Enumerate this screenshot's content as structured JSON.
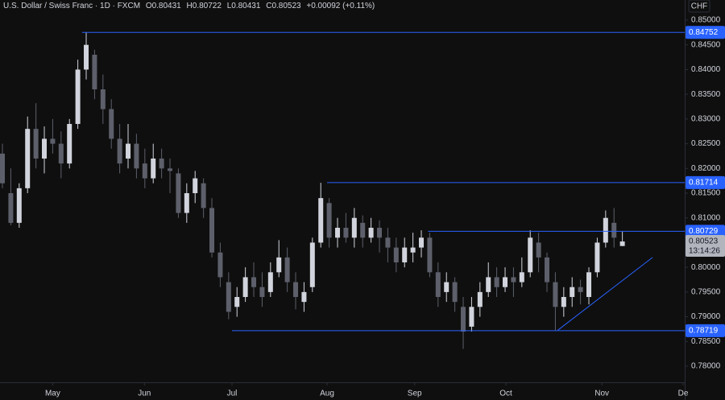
{
  "chart_data": {
    "type": "candlestick",
    "title": "U.S. Dollar / Swiss Franc · 1D · FXCM",
    "header_labels": {
      "open": "O",
      "high": "H",
      "low": "L",
      "close": "C"
    },
    "change": "+0.00092 (+0.11%)",
    "currency": "CHF",
    "countdown": "13:14:26",
    "up_color": "#d1d4dc",
    "down_color": "#5d606b",
    "level_color": "#2962ff",
    "candles": [
      [
        0.823,
        0.825,
        0.816,
        0.817
      ],
      [
        0.815,
        0.82,
        0.8085,
        0.809
      ],
      [
        0.809,
        0.817,
        0.808,
        0.816
      ],
      [
        0.816,
        0.8305,
        0.815,
        0.828
      ],
      [
        0.828,
        0.8332,
        0.82,
        0.822
      ],
      [
        0.822,
        0.8285,
        0.819,
        0.826
      ],
      [
        0.826,
        0.83,
        0.823,
        0.825
      ],
      [
        0.825,
        0.8275,
        0.818,
        0.821
      ],
      [
        0.821,
        0.83,
        0.82,
        0.829
      ],
      [
        0.829,
        0.842,
        0.828,
        0.84
      ],
      [
        0.84,
        0.8475,
        0.838,
        0.845
      ],
      [
        0.843,
        0.844,
        0.834,
        0.836
      ],
      [
        0.836,
        0.839,
        0.829,
        0.832
      ],
      [
        0.832,
        0.834,
        0.824,
        0.826
      ],
      [
        0.826,
        0.829,
        0.819,
        0.821
      ],
      [
        0.822,
        0.829,
        0.82,
        0.825
      ],
      [
        0.825,
        0.827,
        0.818,
        0.82
      ],
      [
        0.821,
        0.824,
        0.816,
        0.818
      ],
      [
        0.818,
        0.825,
        0.817,
        0.822
      ],
      [
        0.822,
        0.824,
        0.818,
        0.82
      ],
      [
        0.82,
        0.822,
        0.815,
        0.8195
      ],
      [
        0.819,
        0.82,
        0.81,
        0.811
      ],
      [
        0.811,
        0.817,
        0.809,
        0.815
      ],
      [
        0.815,
        0.8195,
        0.813,
        0.818
      ],
      [
        0.817,
        0.818,
        0.81,
        0.812
      ],
      [
        0.812,
        0.814,
        0.802,
        0.803
      ],
      [
        0.803,
        0.805,
        0.796,
        0.798
      ],
      [
        0.797,
        0.799,
        0.7895,
        0.791
      ],
      [
        0.792,
        0.796,
        0.79,
        0.794
      ],
      [
        0.794,
        0.8,
        0.793,
        0.798
      ],
      [
        0.798,
        0.801,
        0.794,
        0.796
      ],
      [
        0.796,
        0.799,
        0.792,
        0.794
      ],
      [
        0.795,
        0.801,
        0.794,
        0.799
      ],
      [
        0.799,
        0.8055,
        0.798,
        0.802
      ],
      [
        0.802,
        0.804,
        0.795,
        0.797
      ],
      [
        0.797,
        0.799,
        0.7915,
        0.794
      ],
      [
        0.793,
        0.797,
        0.791,
        0.795
      ],
      [
        0.796,
        0.806,
        0.795,
        0.805
      ],
      [
        0.805,
        0.8171,
        0.804,
        0.814
      ],
      [
        0.813,
        0.814,
        0.804,
        0.806
      ],
      [
        0.806,
        0.81,
        0.804,
        0.808
      ],
      [
        0.808,
        0.811,
        0.805,
        0.806
      ],
      [
        0.806,
        0.812,
        0.804,
        0.81
      ],
      [
        0.809,
        0.8105,
        0.804,
        0.806
      ],
      [
        0.806,
        0.81,
        0.805,
        0.808
      ],
      [
        0.808,
        0.8095,
        0.803,
        0.806
      ],
      [
        0.806,
        0.808,
        0.801,
        0.804
      ],
      [
        0.804,
        0.806,
        0.799,
        0.801
      ],
      [
        0.801,
        0.806,
        0.8,
        0.804
      ],
      [
        0.803,
        0.807,
        0.801,
        0.804
      ],
      [
        0.804,
        0.8075,
        0.802,
        0.806
      ],
      [
        0.806,
        0.807,
        0.798,
        0.799
      ],
      [
        0.799,
        0.801,
        0.792,
        0.794
      ],
      [
        0.795,
        0.799,
        0.793,
        0.797
      ],
      [
        0.797,
        0.798,
        0.791,
        0.793
      ],
      [
        0.792,
        0.794,
        0.7835,
        0.787
      ],
      [
        0.788,
        0.794,
        0.787,
        0.792
      ],
      [
        0.792,
        0.797,
        0.79,
        0.795
      ],
      [
        0.795,
        0.801,
        0.794,
        0.798
      ],
      [
        0.798,
        0.8,
        0.794,
        0.796
      ],
      [
        0.796,
        0.8,
        0.795,
        0.798
      ],
      [
        0.798,
        0.8,
        0.794,
        0.797
      ],
      [
        0.797,
        0.802,
        0.796,
        0.799
      ],
      [
        0.799,
        0.8075,
        0.798,
        0.806
      ],
      [
        0.805,
        0.807,
        0.799,
        0.802
      ],
      [
        0.802,
        0.803,
        0.795,
        0.797
      ],
      [
        0.797,
        0.799,
        0.7872,
        0.792
      ],
      [
        0.792,
        0.796,
        0.79,
        0.794
      ],
      [
        0.794,
        0.798,
        0.792,
        0.796
      ],
      [
        0.796,
        0.7975,
        0.7925,
        0.795
      ],
      [
        0.794,
        0.8,
        0.7925,
        0.799
      ],
      [
        0.799,
        0.806,
        0.798,
        0.805
      ],
      [
        0.805,
        0.8115,
        0.804,
        0.81
      ],
      [
        0.809,
        0.812,
        0.804,
        0.806
      ],
      [
        0.80431,
        0.80722,
        0.80431,
        0.80523
      ]
    ],
    "levels": [
      {
        "value": 0.84752,
        "from": 9.5
      },
      {
        "value": 0.81714,
        "from": 38.75
      },
      {
        "value": 0.80729,
        "from": 50.8
      },
      {
        "value": 0.78719,
        "from": 27.4
      }
    ],
    "trendline": {
      "x": [
        66.3,
        77.6
      ],
      "y": [
        0.7873,
        0.802
      ]
    },
    "xlim": [
      -0.29,
      81.44
    ],
    "ylim": [
      0.77756,
      0.85407
    ],
    "xticks": [
      {
        "value": 6,
        "label": "May"
      },
      {
        "value": 16.95,
        "label": "Jun"
      },
      {
        "value": 27.4,
        "label": "Jul"
      },
      {
        "value": 38.75,
        "label": "Aug"
      },
      {
        "value": 49.2,
        "label": "Sep"
      },
      {
        "value": 60.1,
        "label": "Oct"
      },
      {
        "value": 71.55,
        "label": "Nov"
      },
      {
        "value": 81.25,
        "label": "De"
      }
    ],
    "yticks": [
      {
        "value": 0.78,
        "label": "0.78000"
      },
      {
        "value": 0.785,
        "label": "0.78500"
      },
      {
        "value": 0.79,
        "label": "0.79000"
      },
      {
        "value": 0.795,
        "label": "0.79500"
      },
      {
        "value": 0.8,
        "label": "0.80000"
      },
      {
        "value": 0.805,
        "label": "0.80500"
      },
      {
        "value": 0.81,
        "label": "0.81000"
      },
      {
        "value": 0.815,
        "label": "0.81500"
      },
      {
        "value": 0.82,
        "label": "0.82000"
      },
      {
        "value": 0.825,
        "label": "0.82500"
      },
      {
        "value": 0.83,
        "label": "0.83000"
      },
      {
        "value": 0.835,
        "label": "0.83500"
      },
      {
        "value": 0.84,
        "label": "0.84000"
      },
      {
        "value": 0.845,
        "label": "0.84500"
      },
      {
        "value": 0.85,
        "label": "0.85000"
      }
    ]
  }
}
